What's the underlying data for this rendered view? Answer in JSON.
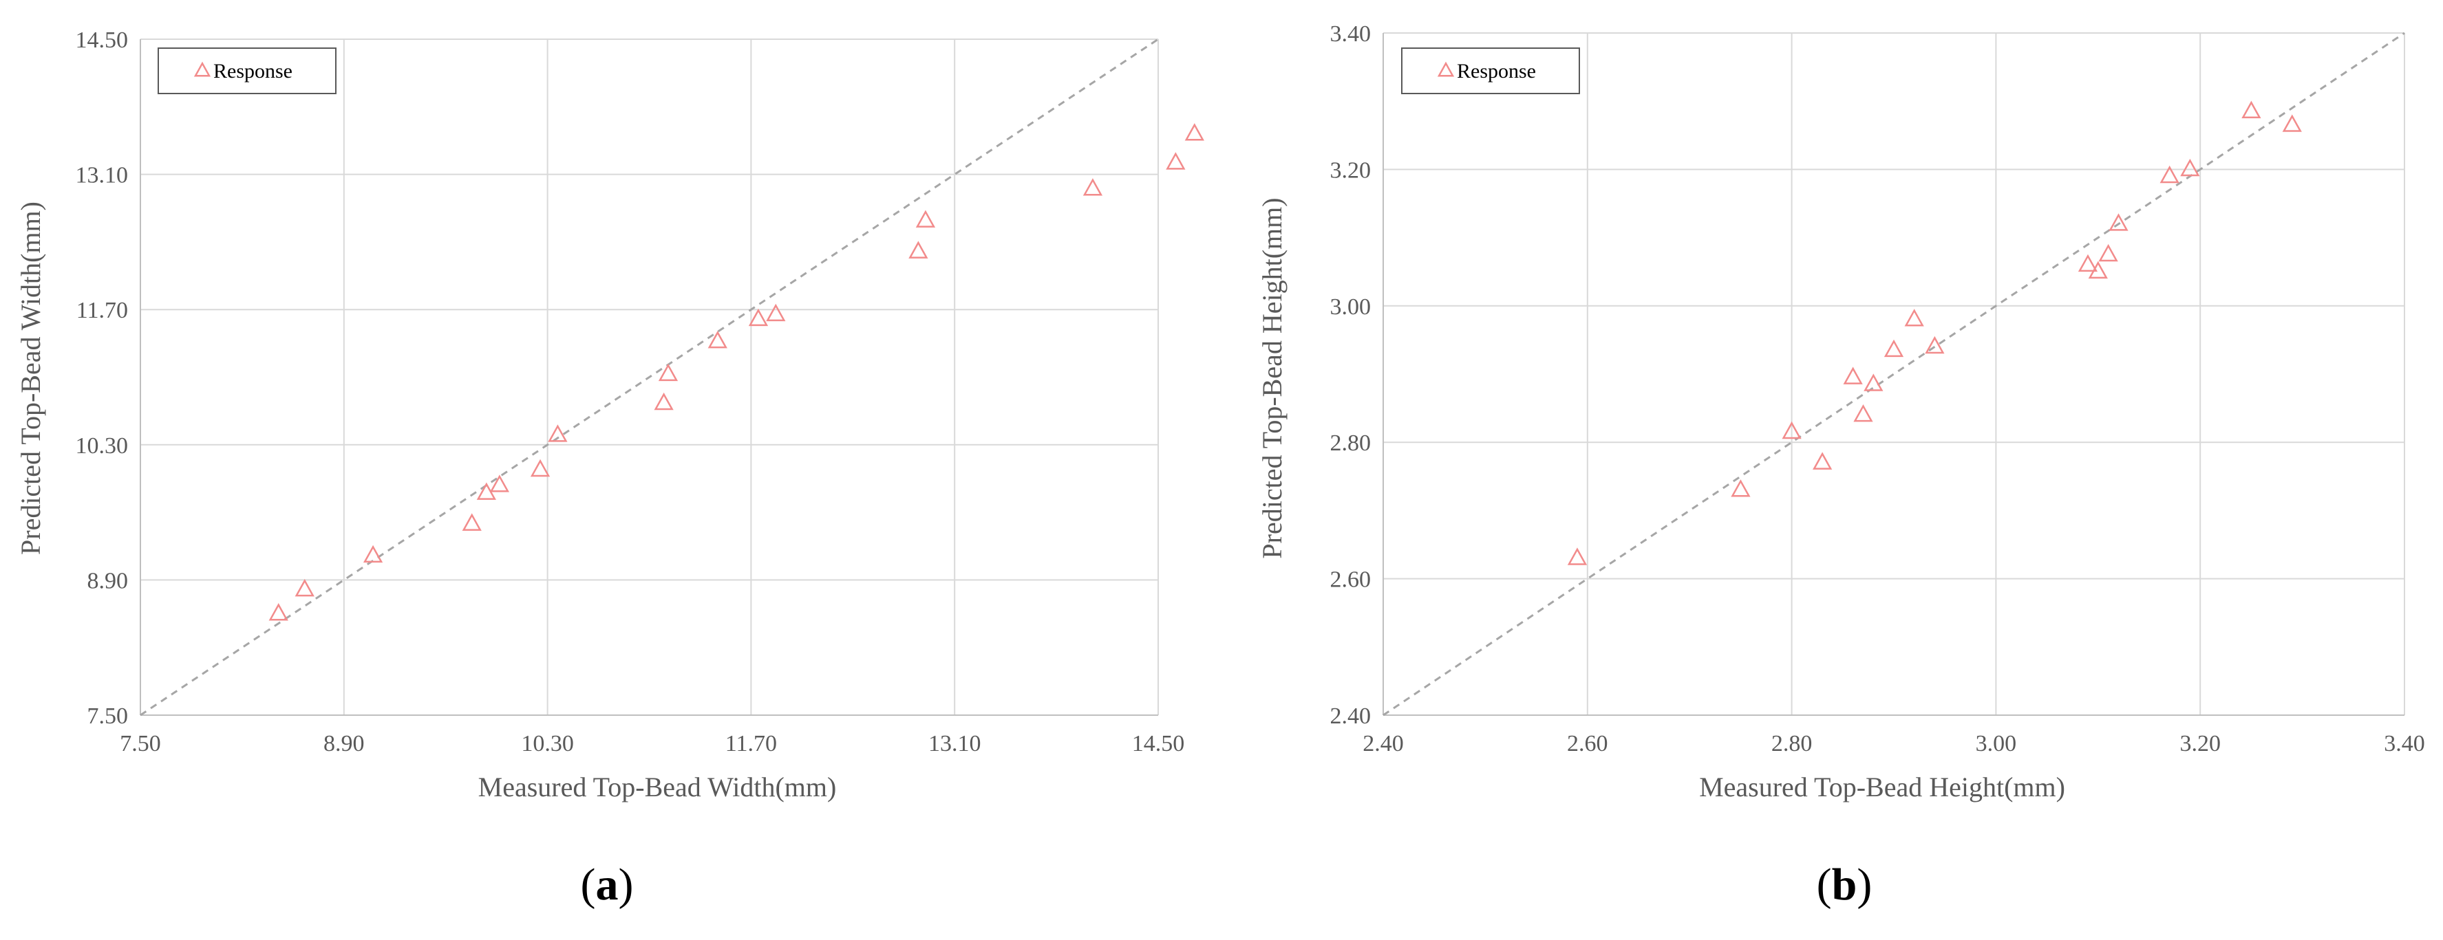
{
  "chart_data": [
    {
      "type": "scatter",
      "panel_label": "a",
      "xlabel": "Measured Top-Bead Width(mm)",
      "ylabel": "Predicted Top-Bead Width(mm)",
      "xlim": [
        7.5,
        14.5
      ],
      "ylim": [
        7.5,
        14.5
      ],
      "xticks": [
        "7.50",
        "8.90",
        "10.30",
        "11.70",
        "13.10",
        "14.50"
      ],
      "yticks": [
        "7.50",
        "8.90",
        "10.30",
        "11.70",
        "13.10",
        "14.50"
      ],
      "grid": true,
      "legend_placement": "top-left",
      "reference_line": "y = x",
      "series": [
        {
          "name": "Response",
          "points": [
            [
              8.45,
              8.55
            ],
            [
              8.63,
              8.8
            ],
            [
              9.1,
              9.15
            ],
            [
              9.78,
              9.48
            ],
            [
              9.88,
              9.8
            ],
            [
              9.97,
              9.88
            ],
            [
              10.25,
              10.04
            ],
            [
              10.37,
              10.4
            ],
            [
              11.1,
              10.73
            ],
            [
              11.13,
              11.03
            ],
            [
              11.47,
              11.37
            ],
            [
              11.75,
              11.6
            ],
            [
              11.87,
              11.65
            ],
            [
              12.85,
              12.3
            ],
            [
              12.9,
              12.62
            ],
            [
              14.05,
              12.95
            ],
            [
              14.62,
              13.22
            ],
            [
              14.75,
              13.52
            ]
          ]
        }
      ],
      "legend_color": "#f28b8b"
    },
    {
      "type": "scatter",
      "panel_label": "b",
      "xlabel": "Measured Top-Bead Height(mm)",
      "ylabel": "Predicted Top-Bead Height(mm)",
      "xlim": [
        2.4,
        3.4
      ],
      "ylim": [
        2.4,
        3.4
      ],
      "xticks": [
        "2.40",
        "2.60",
        "2.80",
        "3.00",
        "3.20",
        "3.40"
      ],
      "yticks": [
        "2.40",
        "2.60",
        "2.80",
        "3.00",
        "3.20",
        "3.40"
      ],
      "grid": true,
      "legend_placement": "top-left",
      "reference_line": "y = x",
      "series": [
        {
          "name": "Response",
          "points": [
            [
              2.59,
              2.63
            ],
            [
              2.75,
              2.73
            ],
            [
              2.8,
              2.815
            ],
            [
              2.83,
              2.77
            ],
            [
              2.86,
              2.895
            ],
            [
              2.87,
              2.84
            ],
            [
              2.88,
              2.885
            ],
            [
              2.9,
              2.935
            ],
            [
              2.92,
              2.98
            ],
            [
              2.94,
              2.94
            ],
            [
              3.09,
              3.06
            ],
            [
              3.1,
              3.05
            ],
            [
              3.11,
              3.075
            ],
            [
              3.12,
              3.12
            ],
            [
              3.17,
              3.19
            ],
            [
              3.19,
              3.2
            ],
            [
              3.25,
              3.285
            ],
            [
              3.29,
              3.265
            ]
          ]
        }
      ],
      "legend_color": "#f28b8b"
    }
  ]
}
